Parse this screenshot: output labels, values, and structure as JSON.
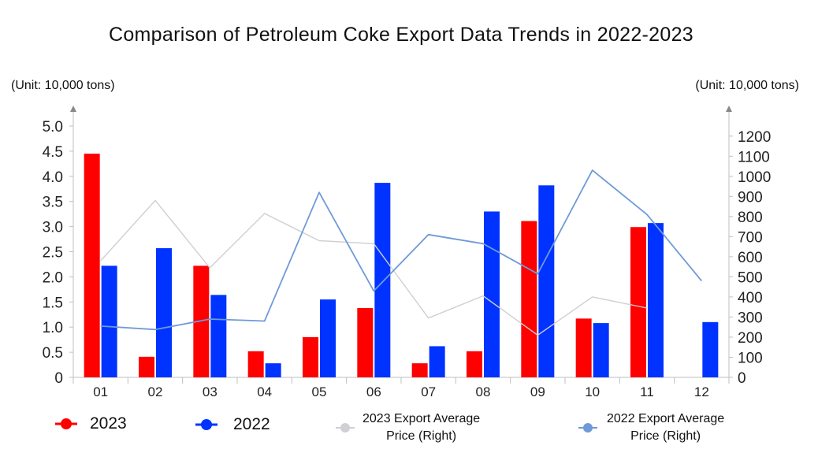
{
  "title": "Comparison of Petroleum Coke Export Data Trends in 2022-2023",
  "unit_left": "(Unit: 10,000 tons)",
  "unit_right": "(Unit: 10,000 tons)",
  "legend": {
    "s2023": "2023",
    "s2022": "2022",
    "p2023_line1": "2023 Export Average",
    "p2023_line2": "Price (Right)",
    "p2022_line1": "2022 Export Average",
    "p2022_line2": "Price (Right)"
  },
  "colors": {
    "s2023": "#ff0000",
    "s2022": "#0033ff",
    "p2023": "#cfcfd4",
    "p2022": "#6f9ad8",
    "axis": "#bfbfbf"
  },
  "chart_data": {
    "type": "bar",
    "title": "Comparison of Petroleum Coke Export Data Trends in 2022-2023",
    "categories": [
      "01",
      "02",
      "03",
      "04",
      "05",
      "06",
      "07",
      "08",
      "09",
      "10",
      "11",
      "12"
    ],
    "left_axis": {
      "ylim": [
        0,
        5
      ],
      "ticks": [
        "0",
        "0.5",
        "1.0",
        "1.5",
        "2.0",
        "2.5",
        "3.0",
        "3.5",
        "4.0",
        "4.5",
        "5.0"
      ]
    },
    "right_axis": {
      "ylim": [
        0,
        1250
      ],
      "ticks": [
        "0",
        "100",
        "200",
        "300",
        "400",
        "500",
        "600",
        "700",
        "800",
        "900",
        "1000",
        "1100",
        "1200"
      ]
    },
    "bar_series": [
      {
        "name": "2023",
        "values": [
          4.45,
          0.41,
          2.22,
          0.52,
          0.8,
          1.38,
          0.28,
          0.52,
          3.11,
          1.17,
          2.99,
          null
        ]
      },
      {
        "name": "2022",
        "values": [
          2.22,
          2.57,
          1.64,
          0.28,
          1.55,
          3.87,
          0.62,
          3.3,
          3.82,
          1.08,
          3.07,
          1.1
        ]
      }
    ],
    "line_series": [
      {
        "name": "2023 Export Average Price (Right)",
        "axis": "right",
        "values": [
          580,
          880,
          545,
          815,
          680,
          665,
          295,
          405,
          210,
          400,
          345,
          null
        ]
      },
      {
        "name": "2022 Export Average Price (Right)",
        "axis": "right",
        "values": [
          255,
          238,
          290,
          280,
          920,
          430,
          710,
          665,
          515,
          1030,
          810,
          480
        ]
      }
    ],
    "grid": false,
    "legend_position": "bottom"
  }
}
